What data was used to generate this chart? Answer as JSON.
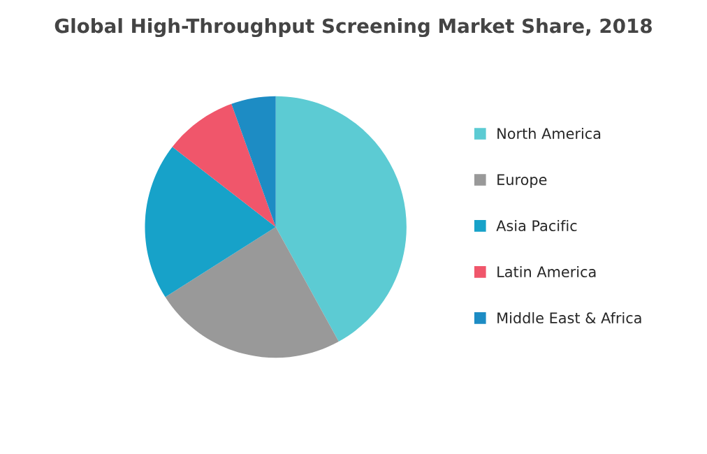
{
  "chart_data": {
    "type": "pie",
    "title": "Global High-Throughput Screening Market Share, 2018",
    "categories": [
      "North America",
      "Europe",
      "Asia Pacific",
      "Latin America",
      "Middle East & Africa"
    ],
    "values": [
      42,
      24,
      19.5,
      9,
      5.5
    ],
    "colors": [
      "#5ccbd3",
      "#999999",
      "#17a2c9",
      "#f0566b",
      "#1d8cc4"
    ],
    "legend": "right"
  }
}
